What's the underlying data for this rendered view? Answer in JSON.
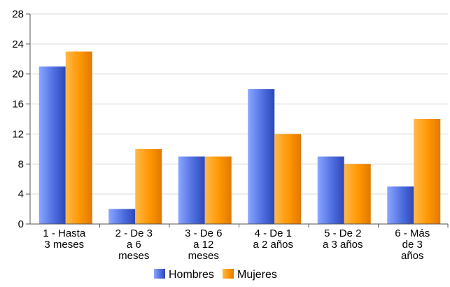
{
  "chart_data": {
    "type": "bar",
    "categories": [
      [
        "1 - Hasta",
        "3 meses"
      ],
      [
        "2 - De 3",
        "a 6",
        "meses"
      ],
      [
        "3 - De 6",
        "a 12",
        "meses"
      ],
      [
        "4 - De 1",
        "a 2 años"
      ],
      [
        "5 - De 2",
        "a 3 años"
      ],
      [
        "6 - Más",
        "de 3",
        "años"
      ]
    ],
    "series": [
      {
        "name": "Hombres",
        "values": [
          21,
          2,
          9,
          18,
          9,
          5
        ],
        "color": "#4f6fe0"
      },
      {
        "name": "Mujeres",
        "values": [
          23,
          10,
          9,
          12,
          8,
          14
        ],
        "color": "#ff9600"
      }
    ],
    "yticks": [
      "0",
      "4",
      "8",
      "12",
      "16",
      "20",
      "24",
      "28"
    ],
    "ylim": [
      0,
      28
    ],
    "grid": true,
    "legend_position": "bottom-center"
  }
}
